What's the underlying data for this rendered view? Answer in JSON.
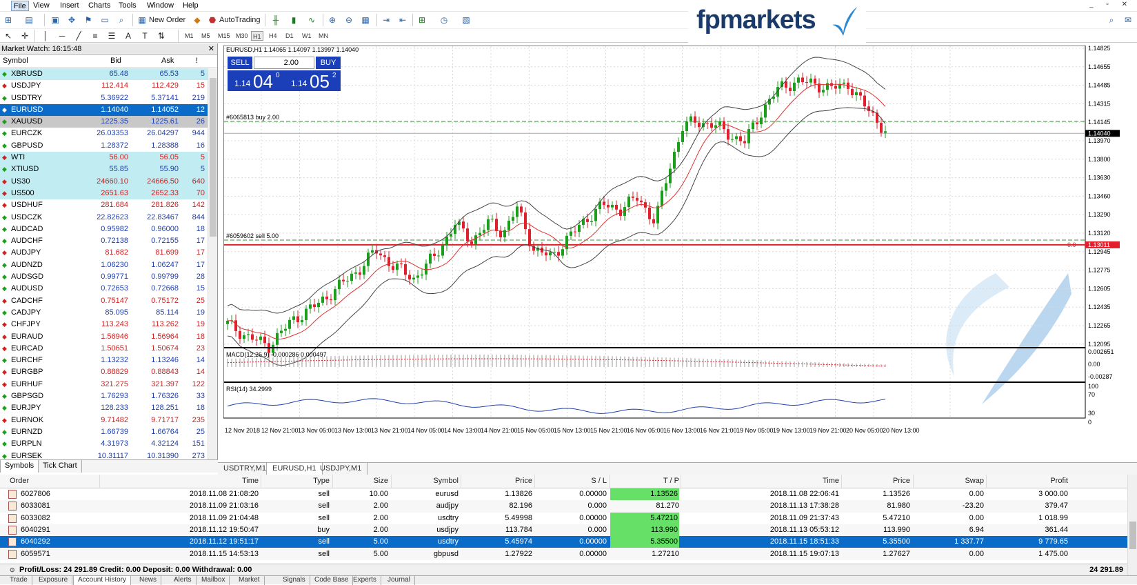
{
  "menu": {
    "items": [
      "File",
      "View",
      "Insert",
      "Charts",
      "Tools",
      "Window",
      "Help"
    ]
  },
  "toolbar": {
    "new_order": "New Order",
    "autotrading": "AutoTrading",
    "timeframes": [
      "M1",
      "M5",
      "M15",
      "M30",
      "H1",
      "H4",
      "D1",
      "W1",
      "MN"
    ],
    "active_tf": "H1"
  },
  "logo": {
    "text": "fpmarkets"
  },
  "market_watch": {
    "title": "Market Watch: 16:15:48",
    "headers": {
      "symbol": "Symbol",
      "bid": "Bid",
      "ask": "Ask",
      "spread": "!"
    },
    "rows": [
      {
        "symbol": "XBRUSD",
        "bid": "65.48",
        "ask": "65.53",
        "spread": "5",
        "dir": "up",
        "style": "hl"
      },
      {
        "symbol": "USDJPY",
        "bid": "112.414",
        "ask": "112.429",
        "spread": "15",
        "dir": "down",
        "style": ""
      },
      {
        "symbol": "USDTRY",
        "bid": "5.36922",
        "ask": "5.37141",
        "spread": "219",
        "dir": "up",
        "style": ""
      },
      {
        "symbol": "EURUSD",
        "bid": "1.14040",
        "ask": "1.14052",
        "spread": "12",
        "dir": "up",
        "style": "sel"
      },
      {
        "symbol": "XAUUSD",
        "bid": "1225.35",
        "ask": "1225.61",
        "spread": "26",
        "dir": "up",
        "style": "gray"
      },
      {
        "symbol": "EURCZK",
        "bid": "26.03353",
        "ask": "26.04297",
        "spread": "944",
        "dir": "up",
        "style": ""
      },
      {
        "symbol": "GBPUSD",
        "bid": "1.28372",
        "ask": "1.28388",
        "spread": "16",
        "dir": "up",
        "style": ""
      },
      {
        "symbol": "WTI",
        "bid": "56.00",
        "ask": "56.05",
        "spread": "5",
        "dir": "down",
        "style": "hl"
      },
      {
        "symbol": "XTIUSD",
        "bid": "55.85",
        "ask": "55.90",
        "spread": "5",
        "dir": "up",
        "style": "hl"
      },
      {
        "symbol": "US30",
        "bid": "24660.10",
        "ask": "24666.50",
        "spread": "640",
        "dir": "down",
        "style": "hl"
      },
      {
        "symbol": "US500",
        "bid": "2651.63",
        "ask": "2652.33",
        "spread": "70",
        "dir": "down",
        "style": "hl"
      },
      {
        "symbol": "USDHUF",
        "bid": "281.684",
        "ask": "281.826",
        "spread": "142",
        "dir": "down",
        "style": ""
      },
      {
        "symbol": "USDCZK",
        "bid": "22.82623",
        "ask": "22.83467",
        "spread": "844",
        "dir": "up",
        "style": ""
      },
      {
        "symbol": "AUDCAD",
        "bid": "0.95982",
        "ask": "0.96000",
        "spread": "18",
        "dir": "up",
        "style": ""
      },
      {
        "symbol": "AUDCHF",
        "bid": "0.72138",
        "ask": "0.72155",
        "spread": "17",
        "dir": "up",
        "style": ""
      },
      {
        "symbol": "AUDJPY",
        "bid": "81.682",
        "ask": "81.699",
        "spread": "17",
        "dir": "down",
        "style": ""
      },
      {
        "symbol": "AUDNZD",
        "bid": "1.06230",
        "ask": "1.06247",
        "spread": "17",
        "dir": "up",
        "style": ""
      },
      {
        "symbol": "AUDSGD",
        "bid": "0.99771",
        "ask": "0.99799",
        "spread": "28",
        "dir": "up",
        "style": ""
      },
      {
        "symbol": "AUDUSD",
        "bid": "0.72653",
        "ask": "0.72668",
        "spread": "15",
        "dir": "up",
        "style": ""
      },
      {
        "symbol": "CADCHF",
        "bid": "0.75147",
        "ask": "0.75172",
        "spread": "25",
        "dir": "down",
        "style": ""
      },
      {
        "symbol": "CADJPY",
        "bid": "85.095",
        "ask": "85.114",
        "spread": "19",
        "dir": "up",
        "style": ""
      },
      {
        "symbol": "CHFJPY",
        "bid": "113.243",
        "ask": "113.262",
        "spread": "19",
        "dir": "down",
        "style": ""
      },
      {
        "symbol": "EURAUD",
        "bid": "1.56946",
        "ask": "1.56964",
        "spread": "18",
        "dir": "down",
        "style": ""
      },
      {
        "symbol": "EURCAD",
        "bid": "1.50651",
        "ask": "1.50674",
        "spread": "23",
        "dir": "down",
        "style": ""
      },
      {
        "symbol": "EURCHF",
        "bid": "1.13232",
        "ask": "1.13246",
        "spread": "14",
        "dir": "up",
        "style": ""
      },
      {
        "symbol": "EURGBP",
        "bid": "0.88829",
        "ask": "0.88843",
        "spread": "14",
        "dir": "down",
        "style": ""
      },
      {
        "symbol": "EURHUF",
        "bid": "321.275",
        "ask": "321.397",
        "spread": "122",
        "dir": "down",
        "style": ""
      },
      {
        "symbol": "GBPSGD",
        "bid": "1.76293",
        "ask": "1.76326",
        "spread": "33",
        "dir": "up",
        "style": ""
      },
      {
        "symbol": "EURJPY",
        "bid": "128.233",
        "ask": "128.251",
        "spread": "18",
        "dir": "up",
        "style": ""
      },
      {
        "symbol": "EURNOK",
        "bid": "9.71482",
        "ask": "9.71717",
        "spread": "235",
        "dir": "down",
        "style": ""
      },
      {
        "symbol": "EURNZD",
        "bid": "1.66739",
        "ask": "1.66764",
        "spread": "25",
        "dir": "up",
        "style": ""
      },
      {
        "symbol": "EURPLN",
        "bid": "4.31973",
        "ask": "4.32124",
        "spread": "151",
        "dir": "up",
        "style": ""
      },
      {
        "symbol": "EURSEK",
        "bid": "10.31117",
        "ask": "10.31390",
        "spread": "273",
        "dir": "up",
        "style": ""
      }
    ],
    "tabs": [
      "Symbols",
      "Tick Chart"
    ]
  },
  "chart": {
    "header": "EURUSD,H1  1.14065 1.14097 1.13997 1.14040",
    "one_click": {
      "sell": "SELL",
      "buy": "BUY",
      "lot": "2.00",
      "sell_small": "1.14",
      "sell_big": "04",
      "sell_sup": "0",
      "buy_small": "1.14",
      "buy_big": "05",
      "buy_sup": "2"
    },
    "order_lines": [
      {
        "label": "#6065813 buy 2.00",
        "price": 1.1415
      },
      {
        "label": "#6059602 sell 5.00",
        "price": 1.13055
      }
    ],
    "price_labels": [
      "1.14825",
      "1.14655",
      "1.14485",
      "1.14315",
      "1.14145",
      "1.13970",
      "1.13800",
      "1.13630",
      "1.13460",
      "1.13290",
      "1.13120",
      "1.12945",
      "1.12775",
      "1.12605",
      "1.12435",
      "1.12265",
      "1.12095"
    ],
    "current_price": "1.14040",
    "red_level": "1.13011",
    "red_level_left": "0.0",
    "time_labels": [
      "12 Nov 2018",
      "12 Nov 21:00",
      "13 Nov 05:00",
      "13 Nov 13:00",
      "13 Nov 21:00",
      "14 Nov 05:00",
      "14 Nov 13:00",
      "14 Nov 21:00",
      "15 Nov 05:00",
      "15 Nov 13:00",
      "15 Nov 21:00",
      "16 Nov 05:00",
      "16 Nov 13:00",
      "16 Nov 21:00",
      "19 Nov 05:00",
      "19 Nov 13:00",
      "19 Nov 21:00",
      "20 Nov 05:00",
      "20 Nov 13:00"
    ],
    "macd_label": "MACD(12,26,9) -0.000286 0.000497",
    "macd_scale": [
      "0.002651",
      "0.00",
      "-0.00287"
    ],
    "rsi_label": "RSI(14) 34.2999",
    "rsi_scale": [
      "100",
      "70",
      "30",
      "0"
    ],
    "tabs": [
      "USDTRY,M1",
      "EURUSD,H1",
      "USDJPY,M1"
    ],
    "colors": {
      "up": "#1b9e1b",
      "down": "#e0202c",
      "ma": "#e03030",
      "band": "#444444",
      "grid": "#d8d8d8"
    }
  },
  "terminal": {
    "headers": [
      "Order",
      "Time",
      "Type",
      "Size",
      "Symbol",
      "Price",
      "S / L",
      "T / P",
      "Time",
      "Price",
      "Swap",
      "Profit"
    ],
    "rows": [
      {
        "order": "6027806",
        "time": "2018.11.08 21:08:20",
        "type": "sell",
        "size": "10.00",
        "symbol": "eurusd",
        "price": "1.13826",
        "sl": "0.00000",
        "tp": "1.13526",
        "ctime": "2018.11.08 22:06:41",
        "cprice": "1.13526",
        "swap": "0.00",
        "profit": "3 000.00",
        "tp_hl": true
      },
      {
        "order": "6033081",
        "time": "2018.11.09 21:03:16",
        "type": "sell",
        "size": "2.00",
        "symbol": "audjpy",
        "price": "82.196",
        "sl": "0.000",
        "tp": "81.270",
        "ctime": "2018.11.13 17:38:28",
        "cprice": "81.980",
        "swap": "-23.20",
        "profit": "379.47",
        "tp_hl": false
      },
      {
        "order": "6033082",
        "time": "2018.11.09 21:04:48",
        "type": "sell",
        "size": "2.00",
        "symbol": "usdtry",
        "price": "5.49998",
        "sl": "0.00000",
        "tp": "5.47210",
        "ctime": "2018.11.09 21:37:43",
        "cprice": "5.47210",
        "swap": "0.00",
        "profit": "1 018.99",
        "tp_hl": true
      },
      {
        "order": "6040291",
        "time": "2018.11.12 19:50:47",
        "type": "buy",
        "size": "2.00",
        "symbol": "usdjpy",
        "price": "113.784",
        "sl": "0.000",
        "tp": "113.990",
        "ctime": "2018.11.13 05:53:12",
        "cprice": "113.990",
        "swap": "6.94",
        "profit": "361.44",
        "tp_hl": true
      },
      {
        "order": "6040292",
        "time": "2018.11.12 19:51:17",
        "type": "sell",
        "size": "5.00",
        "symbol": "usdtry",
        "price": "5.45974",
        "sl": "0.00000",
        "tp": "5.35500",
        "ctime": "2018.11.15 18:51:33",
        "cprice": "5.35500",
        "swap": "1 337.77",
        "profit": "9 779.65",
        "tp_hl": true
      },
      {
        "order": "6059571",
        "time": "2018.11.15 14:53:13",
        "type": "sell",
        "size": "5.00",
        "symbol": "gbpusd",
        "price": "1.27922",
        "sl": "0.00000",
        "tp": "1.27210",
        "ctime": "2018.11.15 19:07:13",
        "cprice": "1.27627",
        "swap": "0.00",
        "profit": "1 475.00",
        "tp_hl": false
      }
    ],
    "summary": "Profit/Loss: 24 291.89  Credit: 0.00  Deposit: 0.00  Withdrawal: 0.00",
    "total": "24 291.89",
    "tabs": [
      "Trade",
      "Exposure",
      "Account History",
      "News",
      "Alerts",
      "Mailbox",
      "Market",
      "Signals",
      "Code Base",
      "Experts",
      "Journal"
    ],
    "active_tab": "Account History"
  }
}
